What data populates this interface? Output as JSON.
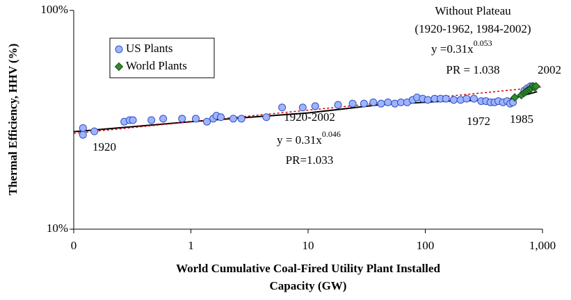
{
  "chart_data": {
    "type": "scatter",
    "x_label": [
      "World Cumulative Coal-Fired Utility Plant Installed",
      "Capacity (GW)"
    ],
    "y_label": "Thermal Efficiency, HHV (%)",
    "xscale": "log",
    "yscale": "log",
    "xlim": [
      0.1,
      1000
    ],
    "xticks": [
      {
        "value": 0.1,
        "label": "0"
      },
      1,
      10,
      100,
      {
        "value": 1000,
        "label": "1,000"
      }
    ],
    "ylim": [
      10,
      100
    ],
    "yticks": [
      {
        "value": 10,
        "label": "10%"
      },
      {
        "value": 100,
        "label": "100%"
      }
    ],
    "legend": "upper left",
    "series": [
      {
        "name": "US Plants",
        "color": "#9fb4ff",
        "marker": "circle",
        "x": [
          0.12,
          0.12,
          0.15,
          0.27,
          0.3,
          0.32,
          0.46,
          0.58,
          0.84,
          1.1,
          1.37,
          1.55,
          1.65,
          1.8,
          2.3,
          2.7,
          4.4,
          6,
          9,
          11.5,
          18,
          24,
          30,
          36,
          42,
          48,
          55,
          62,
          70,
          78,
          85,
          95,
          105,
          120,
          135,
          150,
          175,
          200,
          225,
          260,
          300,
          330,
          360,
          390,
          420,
          460,
          500,
          530,
          560,
          700,
          740,
          790,
          820
        ],
        "values": [
          27,
          29,
          28,
          31,
          31.5,
          31.5,
          31.5,
          32,
          32,
          32,
          31,
          32,
          33,
          32.5,
          32,
          32,
          32.5,
          36,
          36,
          36.5,
          37,
          37.5,
          37.5,
          38,
          37.5,
          38,
          37.5,
          38,
          38,
          39,
          40,
          39.5,
          39,
          39.5,
          39.5,
          39.5,
          39,
          39,
          39.5,
          39.5,
          38.5,
          38.5,
          38,
          38,
          38.5,
          38,
          38.5,
          37.5,
          38,
          43,
          44,
          45,
          45
        ]
      },
      {
        "name": "World Plants",
        "color": "#2e8b2e",
        "marker": "diamond",
        "x": [
          580,
          660,
          700,
          720,
          740,
          770,
          800,
          830,
          860,
          880
        ],
        "values": [
          40,
          41,
          42,
          42.5,
          43,
          43.5,
          44,
          45,
          44.5,
          45
        ]
      }
    ],
    "trend_lines": [
      {
        "color": "#000000",
        "style": "solid",
        "x": [
          0.1,
          1,
          10,
          40,
          150,
          500,
          900
        ],
        "values": [
          27.9,
          31,
          34,
          37,
          38.5,
          39,
          42.5
        ]
      },
      {
        "color": "#cc0000",
        "style": "dotted",
        "x": [
          0.1,
          1000
        ],
        "values": [
          27.4,
          44.7
        ]
      }
    ],
    "annotations": [
      "1920",
      "1972",
      "1985",
      "2002"
    ],
    "fit_labels": [
      {
        "lines": [
          "Without Plateau",
          "(1920-1962, 1984-2002)"
        ],
        "equation": "y =0.31x",
        "exponent": "0.053",
        "pr": "PR = 1.038"
      },
      {
        "lines": [
          "1920-2002"
        ],
        "equation": "y = 0.31x",
        "exponent": "0.046",
        "pr": "PR=1.033"
      }
    ]
  }
}
